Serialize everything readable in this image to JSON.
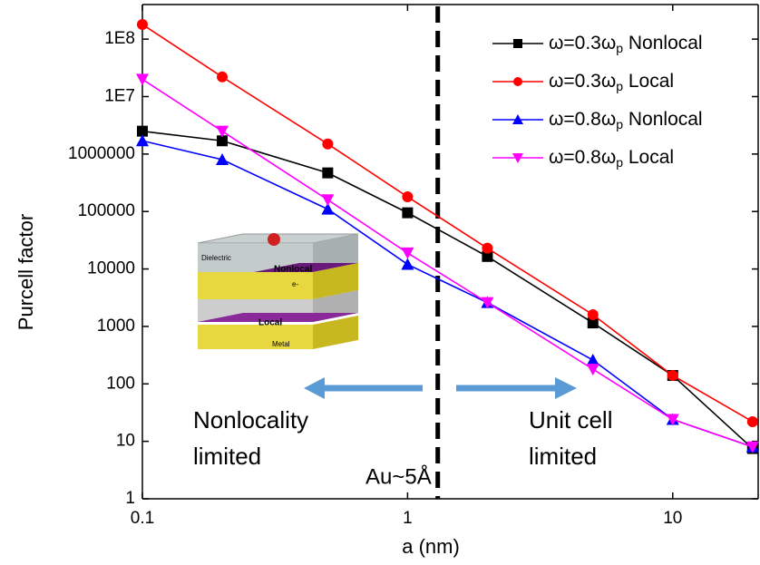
{
  "chart_data": {
    "type": "line",
    "ylabel": "Purcell factor",
    "xlabel": "a (nm)",
    "xscale": "log",
    "yscale": "log",
    "xlim": [
      0.1,
      21
    ],
    "ylim": [
      1,
      400000000
    ],
    "xticks": [
      0.1,
      1,
      10
    ],
    "yticks": [
      1,
      10,
      100,
      1000,
      10000,
      100000,
      1000000,
      {
        "value": 10000000,
        "label": "1E7"
      },
      {
        "value": 100000000,
        "label": "1E8"
      }
    ],
    "x": [
      0.1,
      0.2,
      0.5,
      1,
      2,
      5,
      10,
      20
    ],
    "series": [
      {
        "name": "ω=0.3ωp Nonlocal",
        "color": "#000000",
        "marker": "square",
        "values": [
          2500000,
          1700000,
          470000,
          95000,
          16500,
          1150,
          140,
          7.5
        ]
      },
      {
        "name": "ω=0.3ωp Local",
        "color": "#ff0000",
        "marker": "circle",
        "values": [
          180000000,
          22000000,
          1500000,
          180000,
          23000,
          1600,
          140,
          22
        ]
      },
      {
        "name": "ω=0.8ωp Nonlocal",
        "color": "#0000ff",
        "marker": "triangle-up",
        "values": [
          1700000,
          800000,
          110000,
          12000,
          2600,
          260,
          24,
          8
        ]
      },
      {
        "name": "ω=0.8ωp Local",
        "color": "#ff00ff",
        "marker": "triangle-down",
        "values": [
          20000000,
          2500000,
          160000,
          19000,
          2600,
          180,
          24,
          8
        ]
      }
    ],
    "legend": "upper right",
    "vline": {
      "x": 1.3,
      "label": "Au~5Å"
    },
    "annotations": [
      [
        "Nonlocality",
        "limited"
      ],
      [
        "Unit cell",
        "limited"
      ]
    ],
    "inset_labels": [
      "Dielectric",
      "Nonlocal",
      "e-",
      "Local",
      "Metal"
    ]
  }
}
